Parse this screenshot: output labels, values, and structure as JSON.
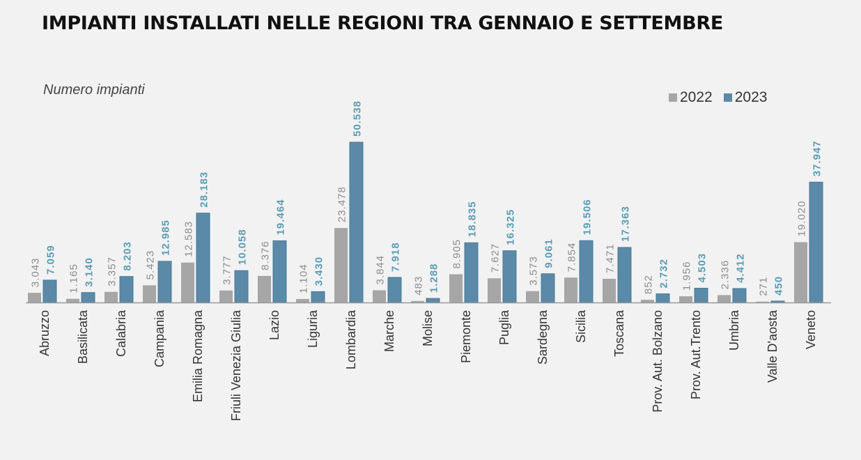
{
  "title": "IMPIANTI INSTALLATI NELLE REGIONI TRA GENNAIO E SETTEMBRE",
  "unit_label": "Numero impianti",
  "colors": {
    "s2022": "#a6a6a6",
    "s2023": "#5b8aa8",
    "label2022": "#8c8c8c",
    "label2023": "#5a9cb5",
    "axis": "#999999"
  },
  "chart_data": {
    "type": "bar",
    "title": "IMPIANTI INSTALLATI NELLE REGIONI TRA GENNAIO E SETTEMBRE",
    "ylabel": "Numero impianti",
    "xlabel": "",
    "ylim": [
      0,
      55000
    ],
    "legend_position": "top-right",
    "grid": false,
    "categories": [
      "Abruzzo",
      "Basilicata",
      "Calabria",
      "Campania",
      "Emilia Romagna",
      "Friuli Venezia Giulia",
      "Lazio",
      "Liguria",
      "Lombardia",
      "Marche",
      "Molise",
      "Piemonte",
      "Puglia",
      "Sardegna",
      "Sicilia",
      "Toscana",
      "Prov. Aut. Bolzano",
      "Prov. Aut.Trento",
      "Umbria",
      "Valle D'aosta",
      "Veneto"
    ],
    "series": [
      {
        "name": "2022",
        "values": [
          3043,
          1165,
          3357,
          5423,
          12583,
          3777,
          8376,
          1104,
          23478,
          3844,
          483,
          8905,
          7627,
          3573,
          7854,
          7471,
          852,
          1956,
          2336,
          271,
          19020
        ],
        "labels": [
          "3.043",
          "1.165",
          "3.357",
          "5.423",
          "12.583",
          "3.777",
          "8.376",
          "1.104",
          "23.478",
          "3.844",
          "483",
          "8.905",
          "7.627",
          "3.573",
          "7.854",
          "7.471",
          "852",
          "1.956",
          "2.336",
          "271",
          "19.020"
        ]
      },
      {
        "name": "2023",
        "values": [
          7059,
          3140,
          8203,
          12985,
          28183,
          10058,
          19464,
          3430,
          50538,
          7918,
          1288,
          18835,
          16325,
          9061,
          19506,
          17363,
          2732,
          4503,
          4412,
          450,
          37947
        ],
        "labels": [
          "7.059",
          "3.140",
          "8.203",
          "12.985",
          "28.183",
          "10.058",
          "19.464",
          "3.430",
          "50.538",
          "7.918",
          "1.288",
          "18.835",
          "16.325",
          "9.061",
          "19.506",
          "17.363",
          "2.732",
          "4.503",
          "4.412",
          "450",
          "37.947"
        ]
      }
    ]
  }
}
